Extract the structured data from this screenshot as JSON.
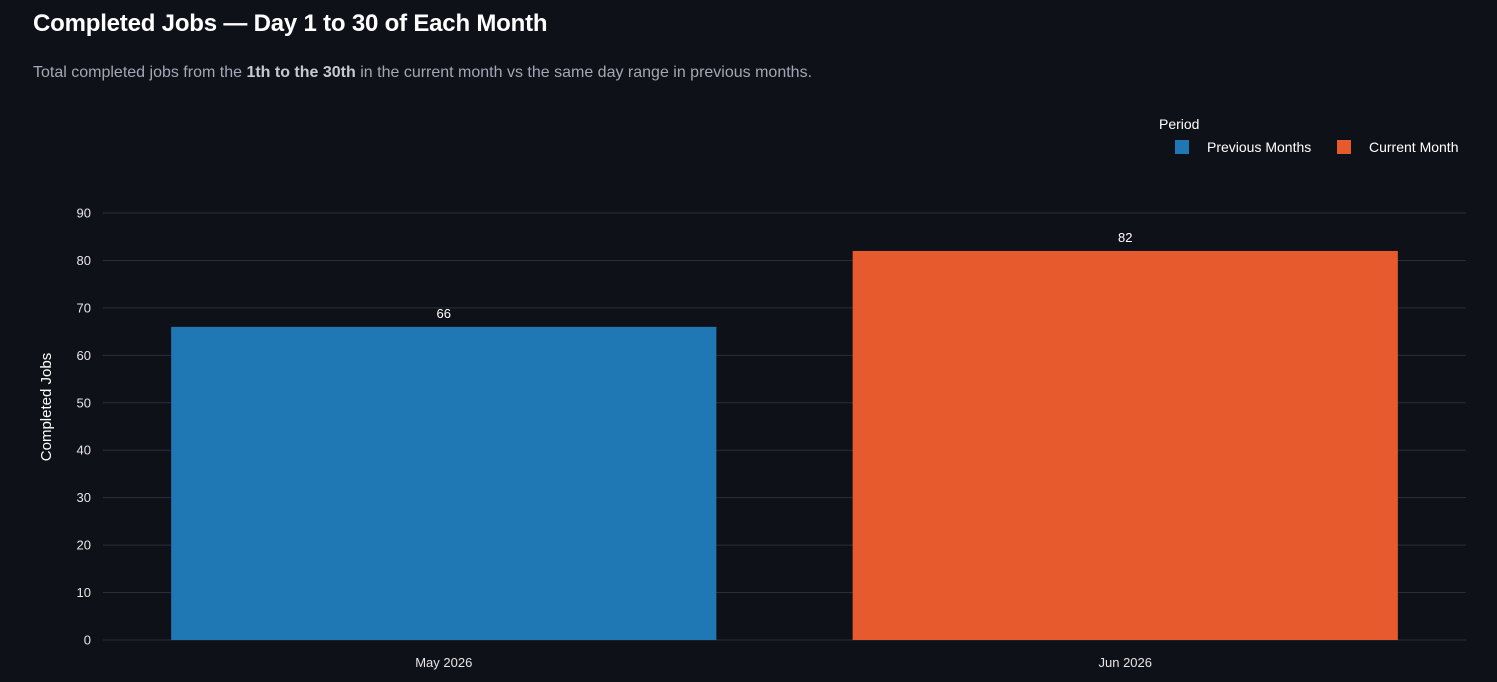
{
  "header": {
    "title": "Completed Jobs — Day 1 to 30 of Each Month",
    "subtitle_pre": "Total completed jobs from the ",
    "subtitle_bold": "1th to the 30th",
    "subtitle_post": " in the current month vs the same day range in previous months."
  },
  "colors": {
    "background": "#0f1119",
    "previous": "#1f77b4",
    "current": "#e75a2d",
    "grid": "#2b2e38"
  },
  "chart_data": {
    "type": "bar",
    "title": "Completed Jobs — Day 1 to 30 of Each Month",
    "xlabel": "",
    "ylabel": "Completed Jobs",
    "ylim": [
      0,
      90
    ],
    "yticks": [
      0,
      10,
      20,
      30,
      40,
      50,
      60,
      70,
      80,
      90
    ],
    "grid": true,
    "legend_title": "Period",
    "legend_position": "top-right",
    "categories": [
      "May 2026",
      "Jun 2026"
    ],
    "series": [
      {
        "name": "Previous Months",
        "color": "#1f77b4",
        "values": [
          66,
          null
        ]
      },
      {
        "name": "Current Month",
        "color": "#e75a2d",
        "values": [
          null,
          82
        ]
      }
    ]
  }
}
